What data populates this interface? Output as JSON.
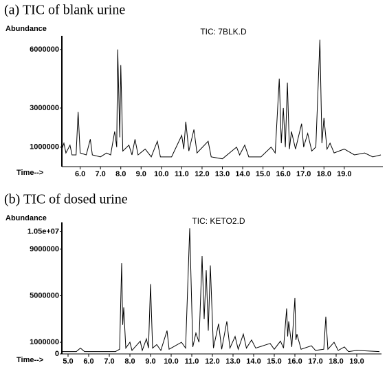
{
  "chart_data": [
    {
      "type": "line",
      "title": "(a) TIC of blank urine",
      "subtitle": "TIC: 7BLK.D",
      "y_label": "Abundance",
      "x_label": "Time-->",
      "color": "#000000",
      "grid": false,
      "xlim": [
        5.1,
        20.9
      ],
      "ylim": [
        0,
        6700000
      ],
      "xticks": [
        {
          "value": 6,
          "label": "6.0"
        },
        {
          "value": 7,
          "label": "7.0"
        },
        {
          "value": 8,
          "label": "8.0"
        },
        {
          "value": 9,
          "label": "9.0"
        },
        {
          "value": 10,
          "label": "10.0"
        },
        {
          "value": 11,
          "label": "11.0"
        },
        {
          "value": 12,
          "label": "12.0"
        },
        {
          "value": 13,
          "label": "13.0"
        },
        {
          "value": 14,
          "label": "14.0"
        },
        {
          "value": 15,
          "label": "15.0"
        },
        {
          "value": 16,
          "label": "16.0"
        },
        {
          "value": 17,
          "label": "17.0"
        },
        {
          "value": 18,
          "label": "18.0"
        },
        {
          "value": 19,
          "label": "19.0"
        }
      ],
      "yticks": [
        1000000,
        3000000,
        6000000
      ],
      "x": [
        5.1,
        5.2,
        5.3,
        5.5,
        5.6,
        5.8,
        5.9,
        6.0,
        6.3,
        6.5,
        6.6,
        7.0,
        7.3,
        7.5,
        7.7,
        7.8,
        7.85,
        7.95,
        8.0,
        8.1,
        8.4,
        8.55,
        8.7,
        8.85,
        9.2,
        9.5,
        9.8,
        9.95,
        10.5,
        11.0,
        11.1,
        11.2,
        11.35,
        11.6,
        11.75,
        12.3,
        12.45,
        13.0,
        13.7,
        13.85,
        14.1,
        14.3,
        14.9,
        15.4,
        15.6,
        15.8,
        15.9,
        16.0,
        16.1,
        16.2,
        16.3,
        16.4,
        16.6,
        16.9,
        17.0,
        17.2,
        17.4,
        17.6,
        17.8,
        17.9,
        18.0,
        18.15,
        18.3,
        18.5,
        19.0,
        19.5,
        20.0,
        20.4,
        20.8
      ],
      "values": [
        900000,
        1200000,
        700000,
        1100000,
        600000,
        600000,
        2800000,
        700000,
        600000,
        1400000,
        600000,
        500000,
        700000,
        600000,
        1800000,
        1000000,
        6000000,
        1500000,
        5200000,
        800000,
        1100000,
        600000,
        1400000,
        600000,
        900000,
        500000,
        1300000,
        500000,
        500000,
        1600000,
        900000,
        2300000,
        800000,
        1900000,
        700000,
        1300000,
        500000,
        400000,
        1000000,
        600000,
        1100000,
        500000,
        500000,
        1000000,
        700000,
        4500000,
        1200000,
        3000000,
        1000000,
        4300000,
        900000,
        1800000,
        900000,
        2200000,
        1000000,
        1700000,
        800000,
        1000000,
        6500000,
        1200000,
        2500000,
        900000,
        1200000,
        700000,
        900000,
        600000,
        700000,
        500000,
        600000
      ]
    },
    {
      "type": "line",
      "title": "(b) TIC of dosed urine",
      "subtitle": "TIC: KETO2.D",
      "y_label": "Abundance",
      "x_label": "Time-->",
      "color": "#000000",
      "grid": false,
      "xlim": [
        4.7,
        20.2
      ],
      "ylim": [
        0,
        11300000
      ],
      "xticks": [
        {
          "value": 5,
          "label": "5.0"
        },
        {
          "value": 6,
          "label": "6.0"
        },
        {
          "value": 7,
          "label": "7.0"
        },
        {
          "value": 8,
          "label": "8.0"
        },
        {
          "value": 9,
          "label": "9.0"
        },
        {
          "value": 10,
          "label": "10.0"
        },
        {
          "value": 11,
          "label": "11.0"
        },
        {
          "value": 12,
          "label": "12.0"
        },
        {
          "value": 13,
          "label": "13.0"
        },
        {
          "value": 14,
          "label": "14.0"
        },
        {
          "value": 15,
          "label": "15.0"
        },
        {
          "value": 16,
          "label": "16.0"
        },
        {
          "value": 17,
          "label": "17.0"
        },
        {
          "value": 18,
          "label": "18.0"
        },
        {
          "value": 19,
          "label": "19.0"
        }
      ],
      "yticks": [
        0,
        1000000,
        5000000,
        9000000,
        {
          "value": 10500000,
          "label": "1.05e+07"
        }
      ],
      "x": [
        4.7,
        5.4,
        5.6,
        5.8,
        7.3,
        7.5,
        7.6,
        7.65,
        7.7,
        7.8,
        8.0,
        8.1,
        8.5,
        8.6,
        8.8,
        8.9,
        9.0,
        9.1,
        9.3,
        9.5,
        9.8,
        9.9,
        10.5,
        10.7,
        10.9,
        11.05,
        11.2,
        11.35,
        11.5,
        11.6,
        11.7,
        11.8,
        11.9,
        12.05,
        12.3,
        12.45,
        12.7,
        12.85,
        13.1,
        13.25,
        13.5,
        13.65,
        13.9,
        14.1,
        14.8,
        15.0,
        15.3,
        15.45,
        15.6,
        15.65,
        15.7,
        15.85,
        16.0,
        16.05,
        16.1,
        16.3,
        16.8,
        17.0,
        17.4,
        17.5,
        17.6,
        17.9,
        18.1,
        18.4,
        18.6,
        19.0,
        20.1
      ],
      "values": [
        200000,
        200000,
        500000,
        200000,
        200000,
        400000,
        7800000,
        2500000,
        4000000,
        500000,
        1000000,
        300000,
        1100000,
        300000,
        1300000,
        500000,
        6000000,
        500000,
        800000,
        300000,
        2000000,
        400000,
        1000000,
        500000,
        10800000,
        600000,
        1800000,
        1000000,
        8400000,
        3000000,
        7200000,
        2000000,
        7600000,
        500000,
        2600000,
        400000,
        2800000,
        500000,
        1500000,
        400000,
        1700000,
        500000,
        1200000,
        500000,
        900000,
        400000,
        1100000,
        500000,
        3900000,
        1500000,
        2800000,
        600000,
        4800000,
        1200000,
        1700000,
        400000,
        700000,
        300000,
        400000,
        3200000,
        400000,
        1000000,
        300000,
        600000,
        200000,
        300000,
        200000
      ]
    }
  ]
}
